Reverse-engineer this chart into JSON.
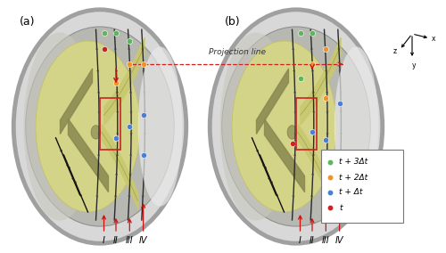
{
  "fig_width": 5.0,
  "fig_height": 2.84,
  "dpi": 100,
  "background_color": "#ffffff",
  "label_a": "(a)",
  "label_b": "(b)",
  "projection_line_label": "Projection line",
  "legend_colors": [
    "#5db55d",
    "#f0922a",
    "#4a7fd4",
    "#cc2222"
  ],
  "legend_labels": [
    "t + 3Δt",
    "t + 2Δt",
    "t + Δt",
    "t"
  ],
  "roman_labels_a": [
    "I",
    "II",
    "III",
    "IV"
  ],
  "roman_labels_b": [
    "I",
    "II",
    "III",
    "IV"
  ],
  "arrow_color": "#cc1111"
}
